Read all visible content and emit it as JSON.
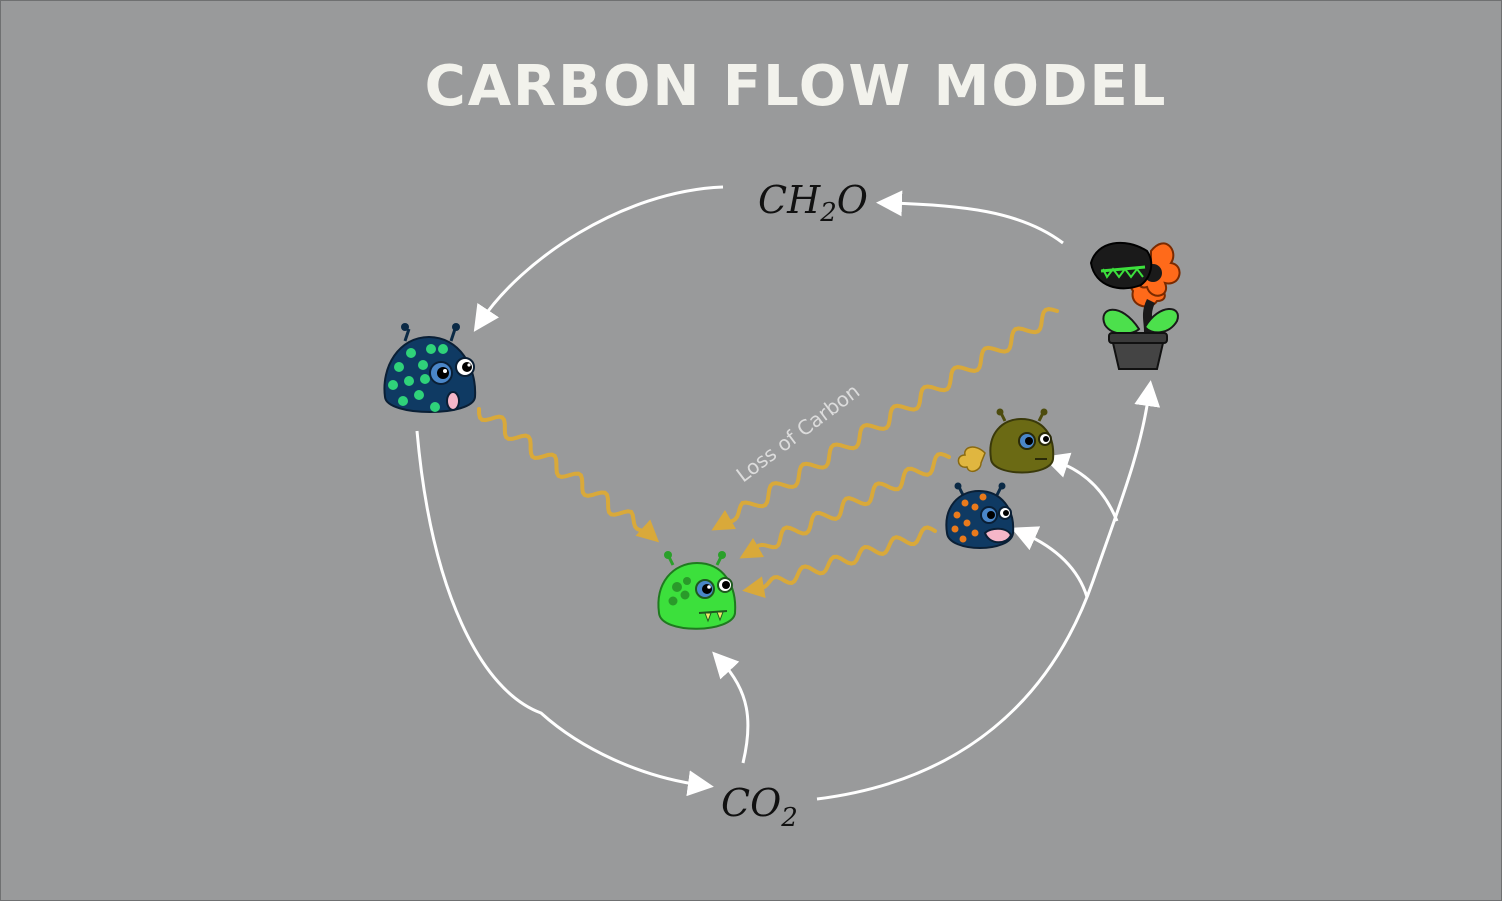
{
  "title": "CARBON FLOW MODEL",
  "nodes": {
    "glucose": {
      "main": "CH",
      "sub": "2",
      "tail": "O"
    },
    "carbon_dioxide": {
      "main": "CO",
      "sub": "2"
    }
  },
  "annotation": "Loss of Carbon",
  "organisms": [
    {
      "id": "producer",
      "kind": "carnivorous-plant"
    },
    {
      "id": "primary-consumer",
      "kind": "creature",
      "color": "#0f3a63",
      "spots": "#2fd27a"
    },
    {
      "id": "top-consumer",
      "kind": "creature",
      "color": "#3ce03c",
      "spots": "#2a9a2a"
    },
    {
      "id": "olive-consumer",
      "kind": "creature",
      "color": "#6b6a14"
    },
    {
      "id": "orange-spotted-consumer",
      "kind": "creature",
      "color": "#0f3a63",
      "spots": "#e87a1c"
    }
  ],
  "colors": {
    "background": "#999a9b",
    "flow_arrow": "#ffffff",
    "loss_arrow": "#d9a93a"
  }
}
